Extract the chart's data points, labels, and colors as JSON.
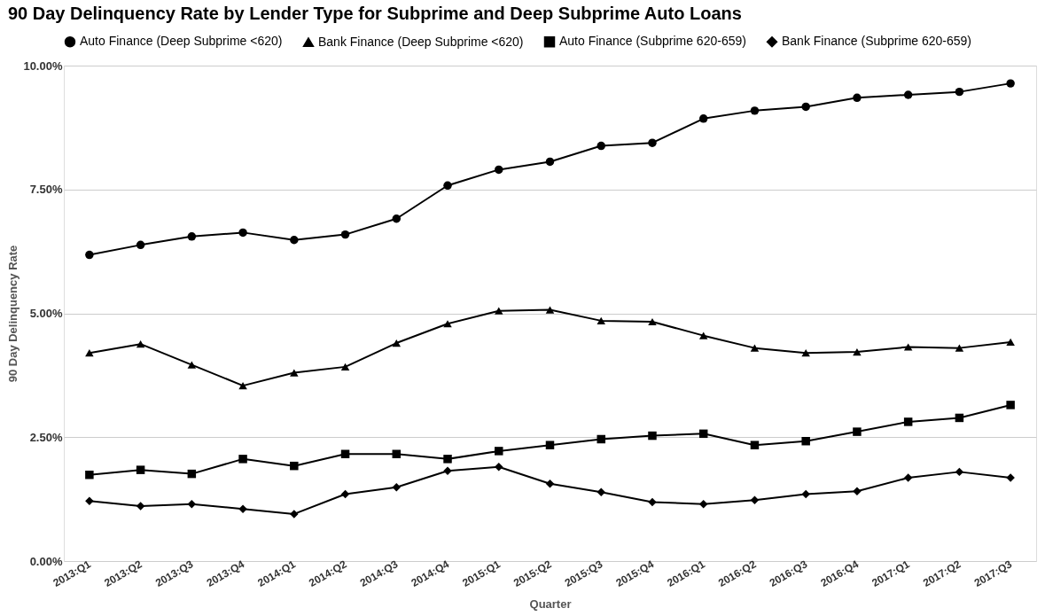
{
  "chart_data": {
    "type": "line",
    "title": "90 Day Delinquency Rate by Lender Type for Subprime and Deep Subprime Auto Loans",
    "xlabel": "Quarter",
    "ylabel": "90 Day Delinquency Rate",
    "categories": [
      "2013:Q1",
      "2013:Q2",
      "2013:Q3",
      "2013:Q4",
      "2014:Q1",
      "2014:Q2",
      "2014:Q3",
      "2014:Q4",
      "2015:Q1",
      "2015:Q2",
      "2015:Q3",
      "2015:Q4",
      "2016:Q1",
      "2016:Q2",
      "2016:Q3",
      "2016:Q4",
      "2017:Q1",
      "2017:Q2",
      "2017:Q3"
    ],
    "series": [
      {
        "name": "Auto Finance (Deep Subprime <620)",
        "color": "#000000",
        "marker": "circle",
        "values": [
          6.18,
          6.38,
          6.55,
          6.63,
          6.48,
          6.59,
          6.91,
          7.58,
          7.9,
          8.06,
          8.38,
          8.44,
          8.93,
          9.09,
          9.17,
          9.35,
          9.41,
          9.47,
          9.64
        ]
      },
      {
        "name": "Bank Finance (Deep Subprime <620)",
        "color": "#000000",
        "marker": "triangle",
        "values": [
          4.2,
          4.38,
          3.96,
          3.54,
          3.8,
          3.92,
          4.4,
          4.79,
          5.05,
          5.07,
          4.85,
          4.83,
          4.55,
          4.3,
          4.2,
          4.22,
          4.32,
          4.3,
          4.42
        ]
      },
      {
        "name": "Auto Finance (Subprime 620-659)",
        "color": "#000000",
        "marker": "square",
        "values": [
          1.74,
          1.84,
          1.76,
          2.06,
          1.92,
          2.16,
          2.16,
          2.06,
          2.22,
          2.34,
          2.46,
          2.53,
          2.57,
          2.34,
          2.42,
          2.61,
          2.81,
          2.89,
          3.15
        ]
      },
      {
        "name": "Bank Finance (Subprime 620-659)",
        "color": "#000000",
        "marker": "diamond",
        "values": [
          1.21,
          1.11,
          1.15,
          1.05,
          0.95,
          1.35,
          1.49,
          1.82,
          1.9,
          1.56,
          1.39,
          1.19,
          1.15,
          1.23,
          1.35,
          1.41,
          1.68,
          1.8,
          1.68
        ]
      }
    ],
    "ylim": [
      0,
      10
    ],
    "yticks": [
      {
        "value": 0,
        "label": "0.00%"
      },
      {
        "value": 2.5,
        "label": "2.50%"
      },
      {
        "value": 5,
        "label": "5.00%"
      },
      {
        "value": 7.5,
        "label": "7.50%"
      },
      {
        "value": 10,
        "label": "10.00%"
      }
    ],
    "grid": "y",
    "legend": "top",
    "line_style": "solid"
  }
}
